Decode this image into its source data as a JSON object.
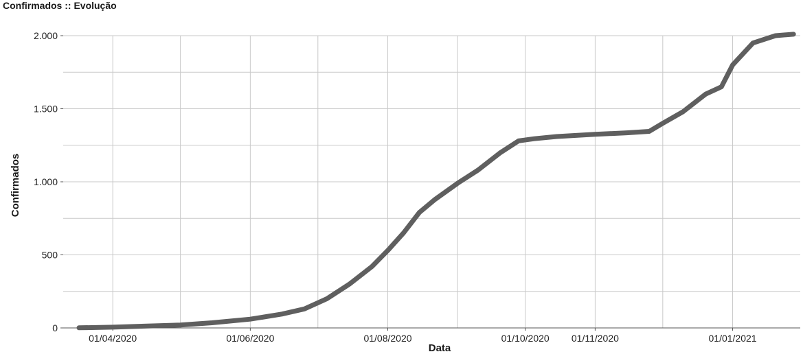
{
  "chart_data": {
    "type": "line",
    "title": "Confirmados :: Evolução",
    "xlabel": "Data",
    "ylabel": "Confirmados",
    "x_type": "date",
    "xlim": [
      "2020-03-10",
      "2021-01-31"
    ],
    "ylim": [
      0,
      2000
    ],
    "grid": true,
    "legend": "none",
    "yticks": [
      0,
      500,
      1000,
      1500,
      2000
    ],
    "ytick_labels": [
      "0",
      "500",
      "1.000",
      "1.500",
      "2.000"
    ],
    "xticks": [
      "2020-04-01",
      "2020-06-01",
      "2020-08-01",
      "2020-10-01",
      "2020-11-01",
      "2021-01-01"
    ],
    "xtick_labels": [
      "01/04/2020",
      "01/06/2020",
      "01/08/2020",
      "01/10/2020",
      "01/11/2020",
      "01/01/2021"
    ],
    "x_gridlines": [
      "2020-03-01",
      "2020-04-01",
      "2020-05-01",
      "2020-06-01",
      "2020-07-01",
      "2020-08-01",
      "2020-09-01",
      "2020-10-01",
      "2020-11-01",
      "2020-12-01",
      "2021-01-01"
    ],
    "series": [
      {
        "color": "#5f5f5f",
        "points": [
          [
            "2020-03-17",
            1
          ],
          [
            "2020-04-01",
            5
          ],
          [
            "2020-04-15",
            12
          ],
          [
            "2020-05-01",
            20
          ],
          [
            "2020-05-15",
            35
          ],
          [
            "2020-06-01",
            60
          ],
          [
            "2020-06-15",
            95
          ],
          [
            "2020-06-25",
            130
          ],
          [
            "2020-07-05",
            200
          ],
          [
            "2020-07-15",
            300
          ],
          [
            "2020-07-25",
            420
          ],
          [
            "2020-08-01",
            530
          ],
          [
            "2020-08-08",
            650
          ],
          [
            "2020-08-15",
            790
          ],
          [
            "2020-08-22",
            880
          ],
          [
            "2020-09-01",
            990
          ],
          [
            "2020-09-10",
            1080
          ],
          [
            "2020-09-20",
            1200
          ],
          [
            "2020-09-28",
            1280
          ],
          [
            "2020-10-05",
            1295
          ],
          [
            "2020-10-15",
            1310
          ],
          [
            "2020-11-01",
            1325
          ],
          [
            "2020-11-15",
            1335
          ],
          [
            "2020-11-25",
            1345
          ],
          [
            "2020-12-01",
            1400
          ],
          [
            "2020-12-10",
            1480
          ],
          [
            "2020-12-20",
            1600
          ],
          [
            "2020-12-27",
            1650
          ],
          [
            "2021-01-01",
            1800
          ],
          [
            "2021-01-10",
            1950
          ],
          [
            "2021-01-20",
            2000
          ],
          [
            "2021-01-28",
            2010
          ]
        ]
      }
    ]
  }
}
